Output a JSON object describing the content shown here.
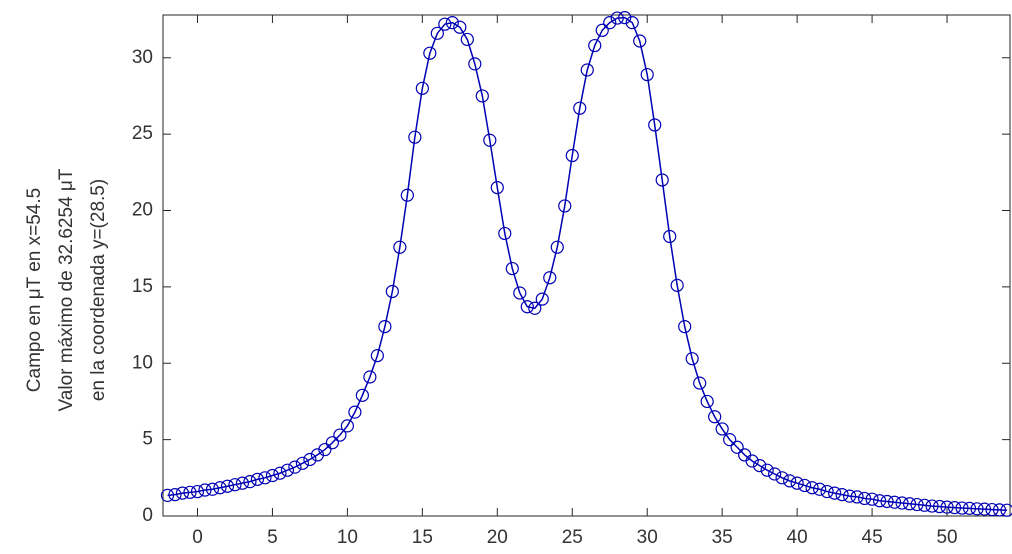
{
  "chart_data": {
    "type": "line",
    "ylabel": [
      "Campo en μT en x=54.5",
      "Valor máximo de 32.6254 μT",
      "en la coordenada y=(28.5)"
    ],
    "x": [
      -2,
      -1.5,
      -1,
      -0.5,
      0,
      0.5,
      1,
      1.5,
      2,
      2.5,
      3,
      3.5,
      4,
      4.5,
      5,
      5.5,
      6,
      6.5,
      7,
      7.5,
      8,
      8.5,
      9,
      9.5,
      10,
      10.5,
      11,
      11.5,
      12,
      12.5,
      13,
      13.5,
      14,
      14.5,
      15,
      15.5,
      16,
      16.5,
      17,
      17.5,
      18,
      18.5,
      19,
      19.5,
      20,
      20.5,
      21,
      21.5,
      22,
      22.5,
      23,
      23.5,
      24,
      24.5,
      25,
      25.5,
      26,
      26.5,
      27,
      27.5,
      28,
      28.5,
      29,
      29.5,
      30,
      30.5,
      31,
      31.5,
      32,
      32.5,
      33,
      33.5,
      34,
      34.5,
      35,
      35.5,
      36,
      36.5,
      37,
      37.5,
      38,
      38.5,
      39,
      39.5,
      40,
      40.5,
      41,
      41.5,
      42,
      42.5,
      43,
      43.5,
      44,
      44.5,
      45,
      45.5,
      46,
      46.5,
      47,
      47.5,
      48,
      48.5,
      49,
      49.5,
      50,
      50.5,
      51,
      51.5,
      52,
      52.5,
      53,
      53.5,
      54
    ],
    "series": [
      {
        "color": "#0000b4",
        "marker": "circle",
        "values": [
          1.35,
          1.4,
          1.5,
          1.55,
          1.6,
          1.7,
          1.75,
          1.85,
          1.95,
          2.05,
          2.15,
          2.25,
          2.4,
          2.5,
          2.65,
          2.8,
          3.0,
          3.2,
          3.45,
          3.7,
          4.0,
          4.35,
          4.8,
          5.3,
          5.9,
          6.8,
          7.9,
          9.1,
          10.5,
          12.4,
          14.7,
          17.6,
          21.0,
          24.8,
          28.0,
          30.3,
          31.6,
          32.2,
          32.3,
          32.0,
          31.2,
          29.6,
          27.5,
          24.6,
          21.5,
          18.5,
          16.2,
          14.6,
          13.7,
          13.6,
          14.2,
          15.6,
          17.6,
          20.3,
          23.6,
          26.7,
          29.2,
          30.8,
          31.8,
          32.3,
          32.6,
          32.63,
          32.3,
          31.1,
          28.9,
          25.6,
          22.0,
          18.3,
          15.1,
          12.4,
          10.3,
          8.7,
          7.5,
          6.5,
          5.7,
          5.0,
          4.5,
          4.0,
          3.6,
          3.3,
          3.0,
          2.75,
          2.5,
          2.3,
          2.15,
          2.0,
          1.85,
          1.75,
          1.6,
          1.5,
          1.4,
          1.3,
          1.25,
          1.15,
          1.1,
          1.0,
          0.95,
          0.9,
          0.85,
          0.8,
          0.75,
          0.7,
          0.65,
          0.62,
          0.58,
          0.55,
          0.52,
          0.5,
          0.47,
          0.45,
          0.42,
          0.4,
          0.38
        ]
      }
    ],
    "xlim": [
      -2.3,
      54.2
    ],
    "xticks": [
      0,
      5,
      10,
      15,
      20,
      25,
      30,
      35,
      40,
      45,
      50
    ],
    "ylim": [
      0,
      32.8
    ],
    "yticks": [
      0,
      5,
      10,
      15,
      20,
      25,
      30
    ],
    "grid": false
  }
}
